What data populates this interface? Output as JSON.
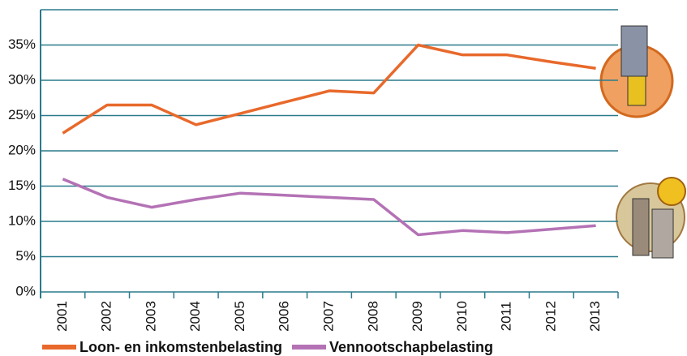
{
  "chart_data": {
    "type": "line",
    "categories": [
      "2001",
      "2002",
      "2003",
      "2004",
      "2005",
      "2006",
      "2007",
      "2008",
      "2009",
      "2010",
      "2011",
      "2012",
      "2013"
    ],
    "series": [
      {
        "name": "Loon- en inkomstenbelasting",
        "color": "#e8692b",
        "values": [
          22.5,
          26.5,
          26.5,
          23.7,
          25.3,
          26.9,
          28.5,
          28.2,
          35,
          33.6,
          33.6,
          32.6,
          31.7
        ]
      },
      {
        "name": "Vennootschapbelasting",
        "color": "#b472b5",
        "values": [
          16,
          13.4,
          12,
          13.1,
          14,
          13.7,
          13.4,
          13.1,
          8.1,
          8.7,
          8.4,
          8.9,
          9.4
        ]
      }
    ],
    "ylim": [
      0,
      40
    ],
    "yticks": [
      {
        "value": 0,
        "label": "0%"
      },
      {
        "value": 5,
        "label": "5%"
      },
      {
        "value": 10,
        "label": "10%"
      },
      {
        "value": 15,
        "label": "15%"
      },
      {
        "value": 20,
        "label": "20%"
      },
      {
        "value": 25,
        "label": "25%"
      },
      {
        "value": 30,
        "label": "30%"
      },
      {
        "value": 35,
        "label": "35%"
      }
    ],
    "grid": true
  }
}
